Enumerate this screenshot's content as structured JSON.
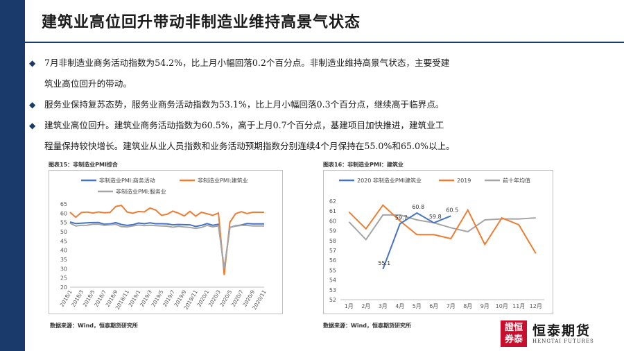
{
  "slide": {
    "title": "建筑业高位回升带动非制造业维持高景气状态"
  },
  "bullets": [
    {
      "line1": "7月非制造业商务活动指数为54.2%，比上月小幅回落0.2个百分点。非制造业维持高景气状态，主要受建",
      "line2": "筑业高位回升的带动。"
    },
    {
      "line1": "服务业保持复苏态势，服务业商务活动指数为53.1%，比上月小幅回落0.3个百分点，继续高于临界点。",
      "line2": ""
    },
    {
      "line1": "建筑业高位回升。建筑业商务活动指数为60.5%，高于上月0.7个百分点，基建项目加快推进，建筑业工",
      "line2": "程量保持较快增长。建筑业从业人员指数和业务活动预期指数分别连续4个月保持在55.0%和65.0%以上。"
    }
  ],
  "chart1_meta": {
    "title": "图表15：非制造业PMI综合",
    "source": "数据来源：Wind，恒泰期货研究所"
  },
  "chart2_meta": {
    "title": "图表16：非制造业PMI：建筑业",
    "source": "数据来源：Wind，恒泰期货研究所"
  },
  "logo": {
    "seal_text": "證恒券泰",
    "name": "恒泰期货",
    "english": "HENGTAI FUTURES"
  },
  "chart_data": [
    {
      "type": "line",
      "title": "",
      "ylim": [
        20,
        65
      ],
      "yticks": [
        20,
        25,
        30,
        35,
        40,
        45,
        50,
        55,
        60,
        65
      ],
      "xtick_labels": [
        "2018/1",
        "2018/3",
        "2018/5",
        "2018/7",
        "2018/9",
        "2018/11",
        "2019/1",
        "2019/3",
        "2019/5",
        "2019/7",
        "2019/9",
        "2019/11",
        "2020/1",
        "2020/3",
        "2020/5",
        "2020/7",
        "2020/9",
        "2020/11"
      ],
      "n_points": 35,
      "series": [
        {
          "name": "非制造业PMI:商务活动",
          "color": "#4472c4",
          "values": [
            55.3,
            54.4,
            54.6,
            54.8,
            54.9,
            55.0,
            54.0,
            54.2,
            54.9,
            53.9,
            53.4,
            53.8,
            54.7,
            54.3,
            54.8,
            54.3,
            54.3,
            54.2,
            53.7,
            53.9,
            53.8,
            53.7,
            52.8,
            53.4,
            54.4,
            53.5,
            54.0,
            29.6,
            52.3,
            53.2,
            53.6,
            54.4,
            54.2,
            54.2,
            54.2
          ]
        },
        {
          "name": "非制造业PMI:建筑业",
          "color": "#ed7d31",
          "values": [
            60.5,
            57.8,
            60.4,
            60.6,
            60.1,
            60.7,
            60.2,
            60.4,
            63.6,
            64.2,
            60.6,
            60.0,
            60.9,
            60.7,
            62.8,
            61.7,
            58.9,
            59.4,
            61.1,
            60.0,
            58.5,
            61.0,
            58.4,
            60.5,
            59.7,
            58.8,
            60.1,
            26.6,
            55.1,
            59.7,
            60.8,
            59.8,
            60.5,
            60.5,
            60.5
          ]
        },
        {
          "name": "非制造业PMI:服务业",
          "color": "#a5a5a5",
          "values": [
            54.6,
            53.1,
            53.4,
            53.5,
            54.0,
            54.1,
            53.4,
            53.7,
            54.0,
            52.7,
            52.6,
            53.1,
            53.6,
            53.3,
            53.5,
            53.3,
            53.1,
            53.0,
            52.4,
            52.9,
            52.5,
            52.3,
            51.8,
            52.3,
            53.4,
            52.6,
            53.2,
            30.1,
            52.3,
            53.0,
            53.4,
            53.4,
            53.1,
            53.1,
            53.1
          ]
        }
      ],
      "legend": "top"
    },
    {
      "type": "line",
      "title": "",
      "ylim": [
        52,
        62
      ],
      "yticks": [
        52,
        53,
        54,
        55,
        56,
        57,
        58,
        59,
        60,
        61,
        62
      ],
      "categories": [
        "1月",
        "2月",
        "3月",
        "4月",
        "5月",
        "6月",
        "7月",
        "8月",
        "9月",
        "10月",
        "11月",
        "12月"
      ],
      "series": [
        {
          "name": "2020 非制造业PMI建筑业",
          "color": "#4472c4",
          "values": [
            null,
            null,
            55.1,
            59.7,
            60.8,
            59.8,
            60.5,
            null,
            null,
            null,
            null,
            null
          ],
          "labels": [
            "",
            "",
            "55.1",
            "59.7",
            "60.8",
            "59.8",
            "60.5",
            "",
            "",
            "",
            "",
            ""
          ]
        },
        {
          "name": "2019",
          "color": "#ed7d31",
          "values": [
            60.9,
            59.2,
            61.6,
            60.0,
            58.6,
            58.6,
            58.2,
            61.1,
            57.6,
            60.3,
            59.6,
            56.7
          ]
        },
        {
          "name": "前十年均值",
          "color": "#a5a5a5",
          "values": [
            59.9,
            58.1,
            60.6,
            60.6,
            60.1,
            59.8,
            59.3,
            58.9,
            60.1,
            60.2,
            60.2,
            60.3
          ]
        }
      ],
      "legend": "top"
    }
  ]
}
